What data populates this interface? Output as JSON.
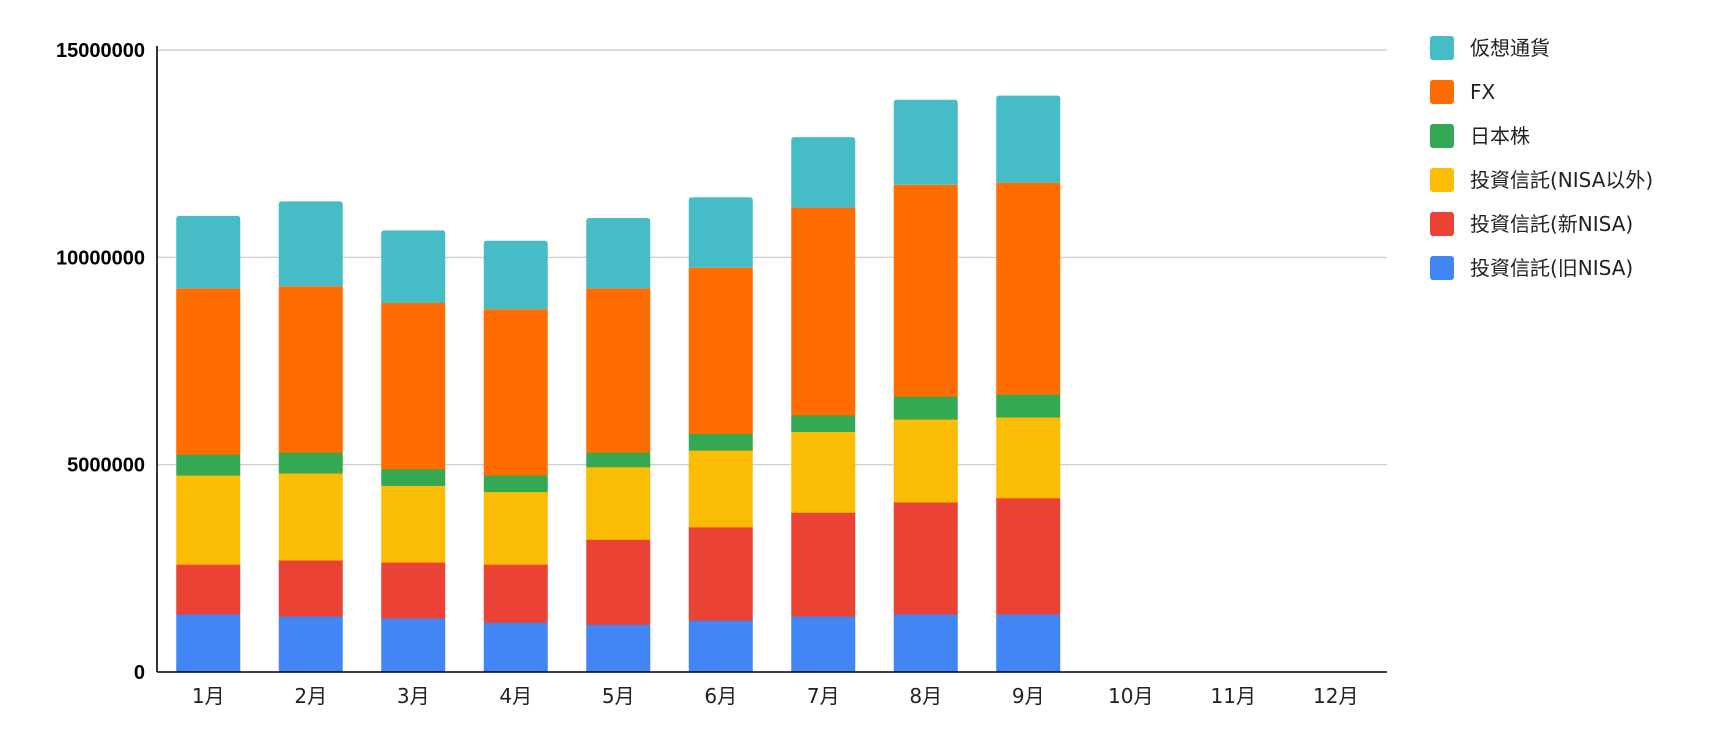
{
  "chart_data": {
    "type": "bar",
    "stacked": true,
    "title": "",
    "xlabel": "",
    "ylabel": "",
    "ylim": [
      0,
      15000000
    ],
    "yticks": [
      "0",
      "5000000",
      "10000000",
      "15000000"
    ],
    "ytick_values": [
      0,
      5000000,
      10000000,
      15000000
    ],
    "grid": true,
    "legend_position": "right",
    "categories": [
      "1月",
      "2月",
      "3月",
      "4月",
      "5月",
      "6月",
      "7月",
      "8月",
      "9月",
      "10月",
      "11月",
      "12月"
    ],
    "series": [
      {
        "name": "投資信託(旧NISA)",
        "color": "#4285F4",
        "values": [
          1400000,
          1350000,
          1300000,
          1200000,
          1150000,
          1250000,
          1350000,
          1400000,
          1400000,
          null,
          null,
          null
        ]
      },
      {
        "name": "投資信託(新NISA)",
        "color": "#EA4335",
        "values": [
          1200000,
          1350000,
          1350000,
          1400000,
          2050000,
          2250000,
          2500000,
          2700000,
          2800000,
          null,
          null,
          null
        ]
      },
      {
        "name": "投資信託(NISA以外)",
        "color": "#FBBC04",
        "values": [
          2150000,
          2100000,
          1850000,
          1750000,
          1750000,
          1850000,
          1950000,
          2000000,
          1950000,
          null,
          null,
          null
        ]
      },
      {
        "name": "日本株",
        "color": "#34A853",
        "values": [
          500000,
          500000,
          400000,
          400000,
          350000,
          400000,
          400000,
          550000,
          550000,
          null,
          null,
          null
        ]
      },
      {
        "name": "FX",
        "color": "#FF6D01",
        "values": [
          4000000,
          4000000,
          4000000,
          4000000,
          3950000,
          4000000,
          5000000,
          5100000,
          5100000,
          null,
          null,
          null
        ]
      },
      {
        "name": "仮想通貨",
        "color": "#46BDC6",
        "values": [
          1750000,
          2050000,
          1750000,
          1650000,
          1700000,
          1700000,
          1700000,
          2050000,
          2100000,
          null,
          null,
          null
        ]
      }
    ]
  }
}
